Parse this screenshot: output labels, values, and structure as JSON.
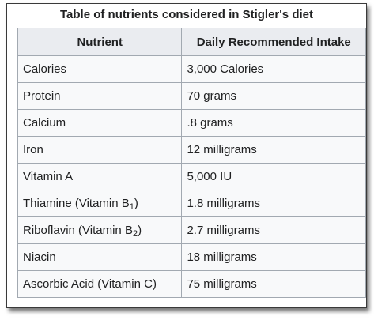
{
  "caption": "Table of nutrients considered in Stigler's diet",
  "headers": [
    "Nutrient",
    "Daily Recommended Intake"
  ],
  "rows": [
    {
      "nutrient": "Calories",
      "intake": "3,000 Calories"
    },
    {
      "nutrient": "Protein",
      "intake": "70 grams"
    },
    {
      "nutrient": "Calcium",
      "intake": ".8 grams"
    },
    {
      "nutrient": "Iron",
      "intake": "12 milligrams"
    },
    {
      "nutrient": "Vitamin A",
      "intake": "5,000 IU"
    },
    {
      "nutrient_pre": "Thiamine (Vitamin B",
      "nutrient_sub": "1",
      "nutrient_post": ")",
      "intake": "1.8 milligrams"
    },
    {
      "nutrient_pre": "Riboflavin (Vitamin B",
      "nutrient_sub": "2",
      "nutrient_post": ")",
      "intake": "2.7 milligrams"
    },
    {
      "nutrient": "Niacin",
      "intake": "18 milligrams"
    },
    {
      "nutrient": "Ascorbic Acid (Vitamin C)",
      "intake": "75 milligrams"
    }
  ]
}
